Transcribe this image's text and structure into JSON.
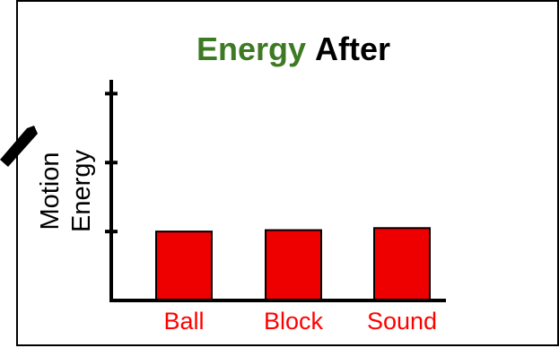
{
  "chart_data": {
    "type": "bar",
    "title_parts": [
      "Energy",
      "After"
    ],
    "ylabel_lines": [
      "Motion",
      "Energy"
    ],
    "categories": [
      "Ball",
      "Block",
      "Sound"
    ],
    "values": [
      1,
      1.02,
      1.05
    ],
    "ylim": [
      0,
      3.2
    ],
    "y_ticks": [
      1,
      2,
      3
    ],
    "tick_labels_visible": false,
    "grid": false,
    "legend": "none"
  },
  "colors": {
    "bar_fill": "#ee0000",
    "bar_stroke": "#000000",
    "title_green": "#3e7a23",
    "title_black": "#000000",
    "category_text": "#ff0000"
  }
}
